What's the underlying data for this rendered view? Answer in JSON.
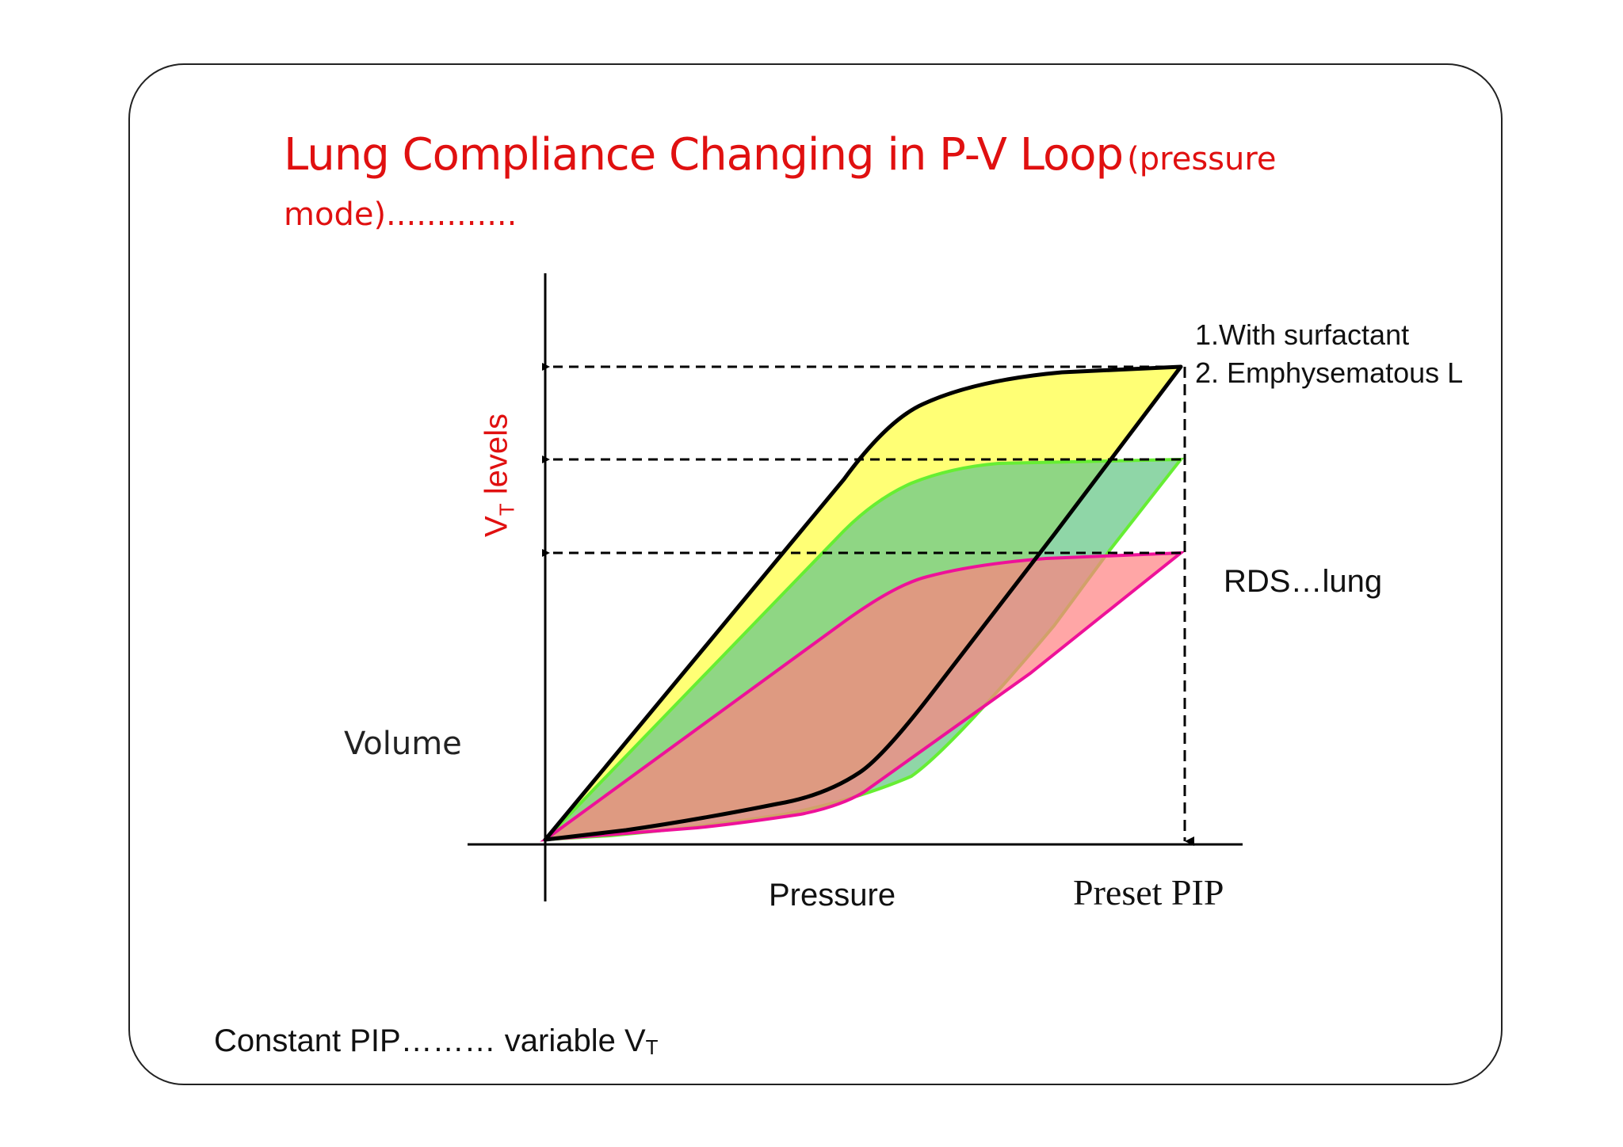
{
  "title": {
    "main": "Lung Compliance Changing in P-V Loop",
    "paren": "(pressure",
    "line2": "mode)............."
  },
  "labels": {
    "surfactant": "1.With surfactant",
    "emphysematous": "2. Emphysematous  L",
    "rds": "RDS…lung",
    "volume": "Volume",
    "pressure": "Pressure",
    "preset_pip": "Preset PIP",
    "vt_main": "V",
    "vt_sub": "T",
    "vt_rest": " levels"
  },
  "footer": {
    "text": "Constant  PIP……… variable V",
    "sub": "T"
  },
  "colors": {
    "title": "#e01010",
    "yellow_fill": "#ffff66",
    "green_fill": "#6ad38a",
    "green_edge": "#66ee33",
    "pink_fill": "#ff8a8a",
    "pink_edge": "#ee1199",
    "black_edge": "#000000"
  }
}
